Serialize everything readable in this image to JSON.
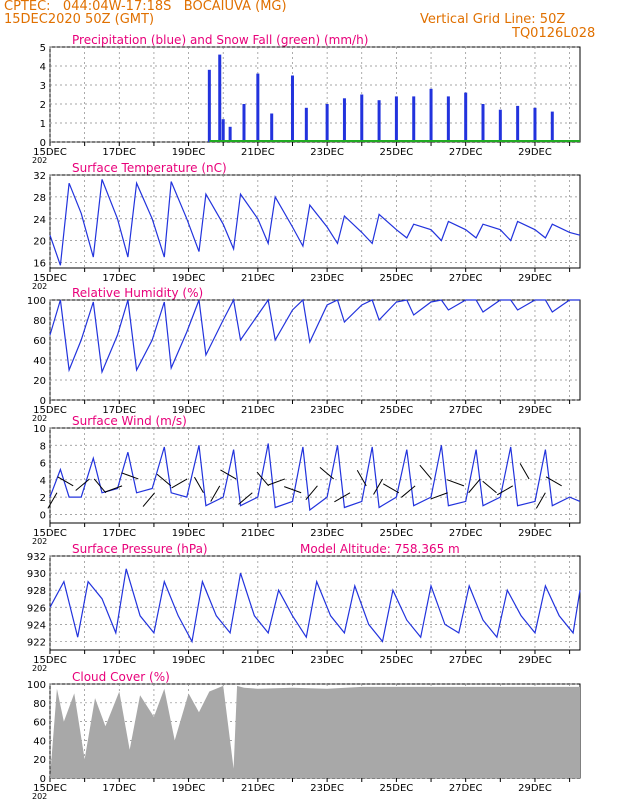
{
  "header": {
    "line1": "CPTEC:   044:04W-17:18S   BOCAIUVA (MG)",
    "line2": "15DEC2020 50Z (GMT)",
    "grid_note": "Vertical Grid Line: 50Z",
    "code": "TQ0126L028"
  },
  "colors": {
    "header": "#e07000",
    "title": "#e8007a",
    "line": "#2233dd",
    "precip": "#2233dd",
    "snow": "#22aa22",
    "cloud": "#a8a8a8"
  },
  "days": [
    "15DEC",
    "17DEC",
    "19DEC",
    "21DEC",
    "23DEC",
    "25DEC",
    "27DEC",
    "29DEC"
  ],
  "year_stub": "202",
  "panels": [
    {
      "id": "precip",
      "title": "Precipitation (blue) and Snow Fall (green) (mm/h)",
      "yticks": [
        0,
        1,
        2,
        3,
        4,
        5
      ],
      "ylim": [
        0,
        5
      ]
    },
    {
      "id": "temp",
      "title": "Surface Temperature (nC)",
      "yticks": [
        16,
        20,
        24,
        28,
        32
      ],
      "ylim": [
        15,
        32
      ]
    },
    {
      "id": "rh",
      "title": "Relative Humidity (%)",
      "yticks": [
        0,
        20,
        40,
        60,
        80,
        100
      ],
      "ylim": [
        0,
        100
      ]
    },
    {
      "id": "wind",
      "title": "Surface Wind (m/s)",
      "yticks": [
        0,
        2,
        4,
        6,
        8,
        10
      ],
      "ylim": [
        -1,
        10
      ]
    },
    {
      "id": "pres",
      "title": "Surface Pressure (hPa)",
      "extra": "Model Altitude: 758.365 m",
      "yticks": [
        922,
        924,
        926,
        928,
        930,
        932
      ],
      "ylim": [
        921,
        932
      ]
    },
    {
      "id": "cloud",
      "title": "Cloud Cover (%)",
      "yticks": [
        0,
        20,
        40,
        60,
        80,
        100
      ],
      "ylim": [
        0,
        100
      ]
    }
  ],
  "chart_data": [
    {
      "type": "bar",
      "title": "Precipitation (blue) and Snow Fall (green) (mm/h)",
      "xlabel": "",
      "ylabel": "",
      "ylim": [
        0,
        5
      ],
      "x_days": [
        4.6,
        4.9,
        5.0,
        5.2,
        5.6,
        6.0,
        6.4,
        7.0,
        7.4,
        8.0,
        8.5,
        9.0,
        9.5,
        10.0,
        10.5,
        11.0,
        11.5,
        12.0,
        12.5,
        13.0,
        13.5,
        14.0,
        14.5
      ],
      "values": [
        3.8,
        4.6,
        1.2,
        0.8,
        2.0,
        3.6,
        1.5,
        3.5,
        1.8,
        2.0,
        2.3,
        2.5,
        2.2,
        2.4,
        2.4,
        2.8,
        2.4,
        2.6,
        2.0,
        1.7,
        1.9,
        1.8,
        1.6
      ],
      "snow_values": [
        0,
        0,
        0,
        0,
        0,
        0,
        0,
        0,
        0,
        0,
        0,
        0,
        0,
        0,
        0,
        0,
        0,
        0,
        0,
        0,
        0,
        0,
        0
      ]
    },
    {
      "type": "line",
      "title": "Surface Temperature (nC)",
      "xlabel": "",
      "ylabel": "",
      "ylim": [
        15,
        32
      ],
      "x_days": [
        0,
        0.3,
        0.55,
        0.9,
        1.25,
        1.5,
        1.95,
        2.25,
        2.5,
        2.95,
        3.3,
        3.5,
        3.95,
        4.3,
        4.5,
        5.0,
        5.3,
        5.5,
        6.0,
        6.3,
        6.5,
        7.0,
        7.3,
        7.5,
        8.0,
        8.3,
        8.5,
        9.0,
        9.3,
        9.5,
        10.0,
        10.3,
        10.5,
        11.0,
        11.3,
        11.5,
        12.0,
        12.3,
        12.5,
        13.0,
        13.3,
        13.5,
        14.0,
        14.3,
        14.5,
        15.0,
        15.3
      ],
      "values": [
        21,
        15.5,
        30.5,
        25,
        17,
        31.2,
        24,
        17,
        30.5,
        24,
        17,
        30.8,
        24,
        18,
        28.5,
        23,
        18.5,
        28.5,
        24,
        19.5,
        28,
        22.5,
        19,
        26.5,
        22.5,
        19.5,
        24.5,
        21.5,
        19.5,
        24.8,
        22,
        20.5,
        23,
        22,
        20,
        23.5,
        22,
        20.5,
        23,
        22,
        20,
        23.5,
        22,
        20.5,
        23,
        21.5,
        21
      ]
    },
    {
      "type": "line",
      "title": "Relative Humidity (%)",
      "xlabel": "",
      "ylabel": "",
      "ylim": [
        0,
        100
      ],
      "x_days": [
        0,
        0.3,
        0.55,
        0.9,
        1.25,
        1.5,
        1.95,
        2.25,
        2.5,
        2.95,
        3.3,
        3.5,
        3.95,
        4.3,
        4.5,
        5.0,
        5.3,
        5.5,
        6.0,
        6.3,
        6.5,
        7.0,
        7.3,
        7.5,
        8.0,
        8.3,
        8.5,
        9.0,
        9.3,
        9.5,
        10.0,
        10.3,
        10.5,
        11.0,
        11.3,
        11.5,
        12.0,
        12.3,
        12.5,
        13.0,
        13.3,
        13.5,
        14.0,
        14.3,
        14.5,
        15.0,
        15.3
      ],
      "values": [
        65,
        100,
        30,
        60,
        98,
        28,
        65,
        100,
        30,
        60,
        98,
        32,
        68,
        100,
        45,
        80,
        100,
        60,
        85,
        100,
        60,
        90,
        100,
        58,
        95,
        100,
        78,
        95,
        100,
        80,
        98,
        100,
        85,
        98,
        100,
        90,
        100,
        100,
        88,
        100,
        100,
        90,
        100,
        100,
        88,
        100,
        100
      ]
    },
    {
      "type": "line",
      "title": "Surface Wind (m/s)",
      "xlabel": "",
      "ylabel": "",
      "ylim": [
        -1,
        10
      ],
      "x_days": [
        0,
        0.3,
        0.55,
        0.9,
        1.25,
        1.5,
        1.95,
        2.25,
        2.5,
        2.95,
        3.3,
        3.5,
        3.95,
        4.3,
        4.5,
        5.0,
        5.3,
        5.5,
        6.0,
        6.3,
        6.5,
        7.0,
        7.3,
        7.5,
        8.0,
        8.3,
        8.5,
        9.0,
        9.3,
        9.5,
        10.0,
        10.3,
        10.5,
        11.0,
        11.3,
        11.5,
        12.0,
        12.3,
        12.5,
        13.0,
        13.3,
        13.5,
        14.0,
        14.3,
        14.5,
        15.0,
        15.3
      ],
      "values": [
        2,
        5.2,
        2,
        2,
        6.5,
        2.5,
        3,
        7.2,
        2.5,
        3,
        7.8,
        2.5,
        2,
        8.0,
        1.0,
        2,
        7.5,
        1.0,
        2,
        8.2,
        0.8,
        1.5,
        7.8,
        0.5,
        2,
        8.0,
        0.8,
        1.5,
        7.8,
        0.8,
        2,
        7.5,
        1.0,
        2,
        8.0,
        1.0,
        1.5,
        7.5,
        1.0,
        2,
        7.8,
        1.0,
        1.5,
        7.5,
        1.0,
        2,
        1.5
      ]
    },
    {
      "type": "line",
      "title": "Surface Pressure (hPa)",
      "xlabel": "",
      "ylabel": "",
      "ylim": [
        921,
        932
      ],
      "x_days": [
        0,
        0.4,
        0.8,
        1.1,
        1.5,
        1.9,
        2.2,
        2.6,
        3.0,
        3.3,
        3.7,
        4.1,
        4.4,
        4.8,
        5.2,
        5.5,
        5.9,
        6.3,
        6.6,
        7.0,
        7.4,
        7.7,
        8.1,
        8.5,
        8.8,
        9.2,
        9.6,
        9.9,
        10.3,
        10.7,
        11.0,
        11.4,
        11.8,
        12.1,
        12.5,
        12.9,
        13.2,
        13.6,
        14.0,
        14.3,
        14.7,
        15.1,
        15.3
      ],
      "values": [
        926,
        929,
        922.5,
        929,
        927,
        923,
        930.5,
        925,
        923,
        929,
        925,
        922,
        929,
        925,
        923,
        930,
        925,
        923,
        928,
        925,
        922.5,
        929,
        925,
        923,
        928.5,
        924,
        922,
        928,
        924.5,
        922.5,
        928.5,
        924,
        923,
        928.5,
        924.5,
        922.5,
        928,
        925,
        923,
        928.5,
        925,
        923,
        928
      ]
    },
    {
      "type": "area",
      "title": "Cloud Cover (%)",
      "xlabel": "",
      "ylabel": "",
      "ylim": [
        0,
        100
      ],
      "x_days": [
        0,
        0.2,
        0.4,
        0.7,
        1.0,
        1.3,
        1.6,
        2.0,
        2.3,
        2.6,
        3.0,
        3.3,
        3.6,
        4.0,
        4.3,
        4.6,
        5.0,
        5.3,
        5.4,
        5.6,
        6.0,
        7.0,
        8.0,
        9.0,
        10.0,
        11.0,
        12.0,
        13.0,
        14.0,
        15.3
      ],
      "values": [
        0,
        95,
        60,
        90,
        20,
        85,
        55,
        92,
        30,
        88,
        65,
        95,
        40,
        90,
        70,
        92,
        98,
        10,
        98,
        96,
        95,
        96,
        95,
        97,
        97,
        97,
        97,
        97,
        97,
        97
      ]
    }
  ]
}
